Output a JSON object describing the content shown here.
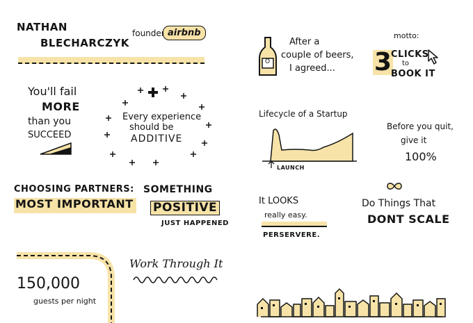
{
  "colors": {
    "ink": "#141414",
    "accent": "#f7e3a8",
    "paper": "#ffffff"
  },
  "header": {
    "name_line1": "NATHAN",
    "name_line2": "BLECHARCZYK",
    "founder_label": "founder,",
    "company_logo": "airbnb"
  },
  "quote_fail": {
    "line1": "You'll fail",
    "line2": "MORE",
    "line3": "than you",
    "line4": "SUCCEED"
  },
  "additive": {
    "line1": "Every experience",
    "line2": "should be",
    "line3": "ADDITIVE"
  },
  "partners": {
    "line1": "CHOOSING PARTNERS:",
    "line2": "MOST IMPORTANT"
  },
  "positive": {
    "line1": "SOMETHING",
    "line2": "POSITIVE",
    "line3": "JUST HAPPENED"
  },
  "guests": {
    "number": "150,000",
    "label": "guests per night"
  },
  "work": {
    "text": "Work Through It"
  },
  "beers": {
    "line1": "After a",
    "line2": "couple of beers,",
    "line3": "I agreed...",
    "bottle_label": "O"
  },
  "motto": {
    "label": "motto:",
    "number": "3",
    "line1": "CLICKS",
    "line2": "to",
    "line3": "BOOK IT"
  },
  "lifecycle": {
    "title": "Lifecycle of a Startup",
    "launch_label": "LAUNCH"
  },
  "quit": {
    "line1": "Before you quit,",
    "line2": "give it",
    "line3": "100%"
  },
  "looks": {
    "line1": "It LOOKS",
    "line2": "really easy.",
    "line3": "PERSERVERE."
  },
  "scale": {
    "line1": "Do Things That",
    "line2": "DONT SCALE"
  }
}
